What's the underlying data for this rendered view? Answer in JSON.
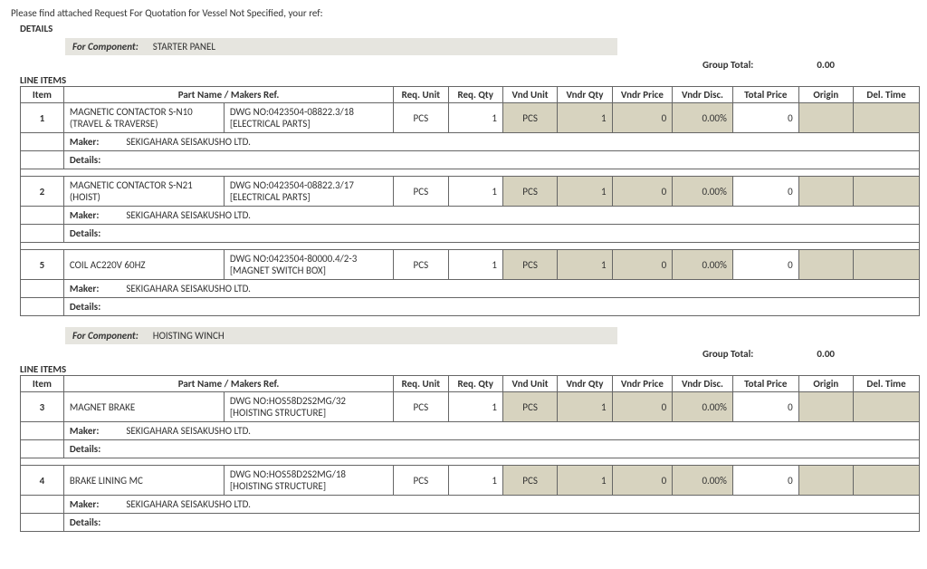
{
  "intro": "Please find attached Request For Quotation for Vessel Not Specified, your ref:",
  "detailsHeading": "DETAILS",
  "componentLabel": "For Component:",
  "lineItemsHeading": "LINE ITEMS",
  "groupTotalLabel": "Group Total:",
  "columns": {
    "item": "Item",
    "partName": "Part Name / Makers Ref.",
    "reqUnit": "Req. Unit",
    "reqQty": "Req. Qty",
    "vndUnit": "Vnd Unit",
    "vndrQty": "Vndr Qty",
    "vndrPrice": "Vndr Price",
    "vndrDisc": "Vndr Disc.",
    "totalPrice": "Total Price",
    "origin": "Origin",
    "delTime": "Del. Time"
  },
  "labels": {
    "maker": "Maker:",
    "details": "Details:"
  },
  "groups": [
    {
      "component": "STARTER PANEL",
      "groupTotal": "0.00",
      "rows": [
        {
          "item": "1",
          "part1": "MAGNETIC CONTACTOR S-N10 (TRAVEL & TRAVERSE)",
          "part2a": "DWG NO:0423504-08822.3/18",
          "part2b": "[ELECTRICAL PARTS]",
          "reqUnit": "PCS",
          "reqQty": "1",
          "vndUnit": "PCS",
          "vndrQty": "1",
          "vndrPrice": "0",
          "vndrDisc": "0.00%",
          "totalPrice": "0",
          "maker": "SEKIGAHARA SEISAKUSHO LTD.",
          "details": ""
        },
        {
          "item": "2",
          "part1": "MAGNETIC CONTACTOR S-N21 (HOIST)",
          "part2a": "DWG NO:0423504-08822.3/17",
          "part2b": "[ELECTRICAL PARTS]",
          "reqUnit": "PCS",
          "reqQty": "1",
          "vndUnit": "PCS",
          "vndrQty": "1",
          "vndrPrice": "0",
          "vndrDisc": "0.00%",
          "totalPrice": "0",
          "maker": "SEKIGAHARA SEISAKUSHO LTD.",
          "details": ""
        },
        {
          "item": "5",
          "part1": "COIL AC220V 60HZ",
          "part2a": "DWG NO:0423504-80000.4/2-3",
          "part2b": "[MAGNET SWITCH BOX]",
          "reqUnit": "PCS",
          "reqQty": "1",
          "vndUnit": "PCS",
          "vndrQty": "1",
          "vndrPrice": "0",
          "vndrDisc": "0.00%",
          "totalPrice": "0",
          "maker": "SEKIGAHARA SEISAKUSHO LTD.",
          "details": ""
        }
      ]
    },
    {
      "component": "HOISTING WINCH",
      "groupTotal": "0.00",
      "rows": [
        {
          "item": "3",
          "part1": "MAGNET BRAKE",
          "part2a": "DWG NO:HOS58D2S2MG/32",
          "part2b": "[HOISTING STRUCTURE]",
          "reqUnit": "PCS",
          "reqQty": "1",
          "vndUnit": "PCS",
          "vndrQty": "1",
          "vndrPrice": "0",
          "vndrDisc": "0.00%",
          "totalPrice": "0",
          "maker": "SEKIGAHARA SEISAKUSHO LTD.",
          "details": ""
        },
        {
          "item": "4",
          "part1": "BRAKE LINING MC",
          "part2a": "DWG NO:HOS58D2S2MG/18",
          "part2b": "[HOISTING STRUCTURE]",
          "reqUnit": "PCS",
          "reqQty": "1",
          "vndUnit": "PCS",
          "vndrQty": "1",
          "vndrPrice": "0",
          "vndrDisc": "0.00%",
          "totalPrice": "0",
          "maker": "SEKIGAHARA SEISAKUSHO LTD.",
          "details": ""
        }
      ]
    }
  ]
}
